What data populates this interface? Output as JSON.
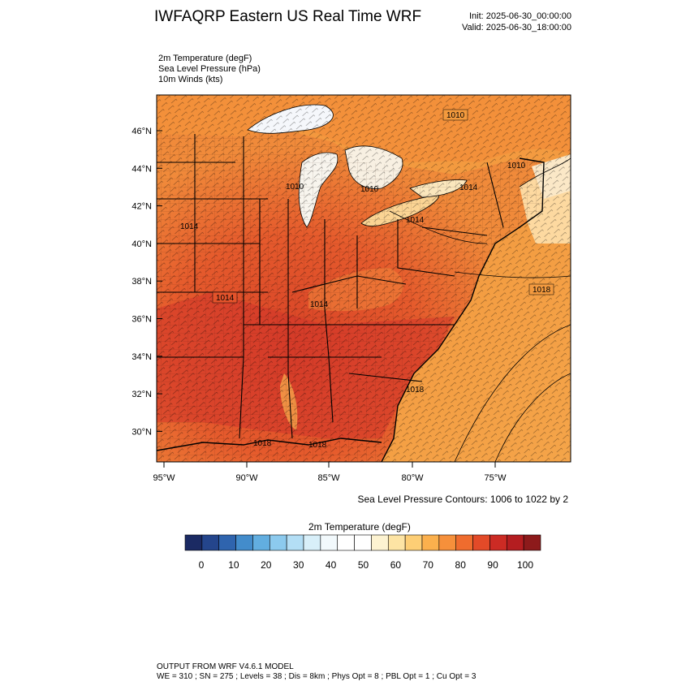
{
  "header": {
    "title": "IWFAQRP Eastern US Real Time WRF",
    "init": "Init: 2025-06-30_00:00:00",
    "valid": "Valid: 2025-06-30_18:00:00"
  },
  "fields": [
    "2m Temperature   (degF)",
    "Sea Level Pressure   (hPa)",
    "10m Winds   (kts)"
  ],
  "axes": {
    "lat_labels": [
      "46°N",
      "44°N",
      "42°N",
      "40°N",
      "38°N",
      "36°N",
      "34°N",
      "32°N",
      "30°N"
    ],
    "lon_labels": [
      "95°W",
      "90°W",
      "85°W",
      "80°W",
      "75°W"
    ]
  },
  "pressure_labels": [
    "1010",
    "1010",
    "1010",
    "1014",
    "1014",
    "1014",
    "1014",
    "1014",
    "1018",
    "1018",
    "1018",
    "1018",
    "1010"
  ],
  "contour_note": "Sea Level Pressure Contours: 1006 to 1022 by 2",
  "colorbar": {
    "title": "2m Temperature  (degF)",
    "ticks": [
      "0",
      "10",
      "20",
      "30",
      "40",
      "50",
      "60",
      "70",
      "80",
      "90",
      "100"
    ],
    "colors": [
      "#1b2a63",
      "#24458c",
      "#2f64ae",
      "#438ccb",
      "#62aee0",
      "#8ccaee",
      "#b3def5",
      "#d8eff9",
      "#f2f9fc",
      "#ffffff",
      "#ffffff",
      "#fdf3d1",
      "#fde4a4",
      "#fdce75",
      "#fbb04d",
      "#f6903b",
      "#ef6c2e",
      "#e34a28",
      "#cc2b24",
      "#b41d20",
      "#8d1a1b"
    ]
  },
  "footer": {
    "line1": "OUTPUT FROM WRF V4.6.1 MODEL",
    "line2": "WE = 310 ; SN = 275 ; Levels = 38 ; Dis = 8km ; Phys Opt = 8 ; PBL Opt = 1 ; Cu Opt = 3"
  }
}
